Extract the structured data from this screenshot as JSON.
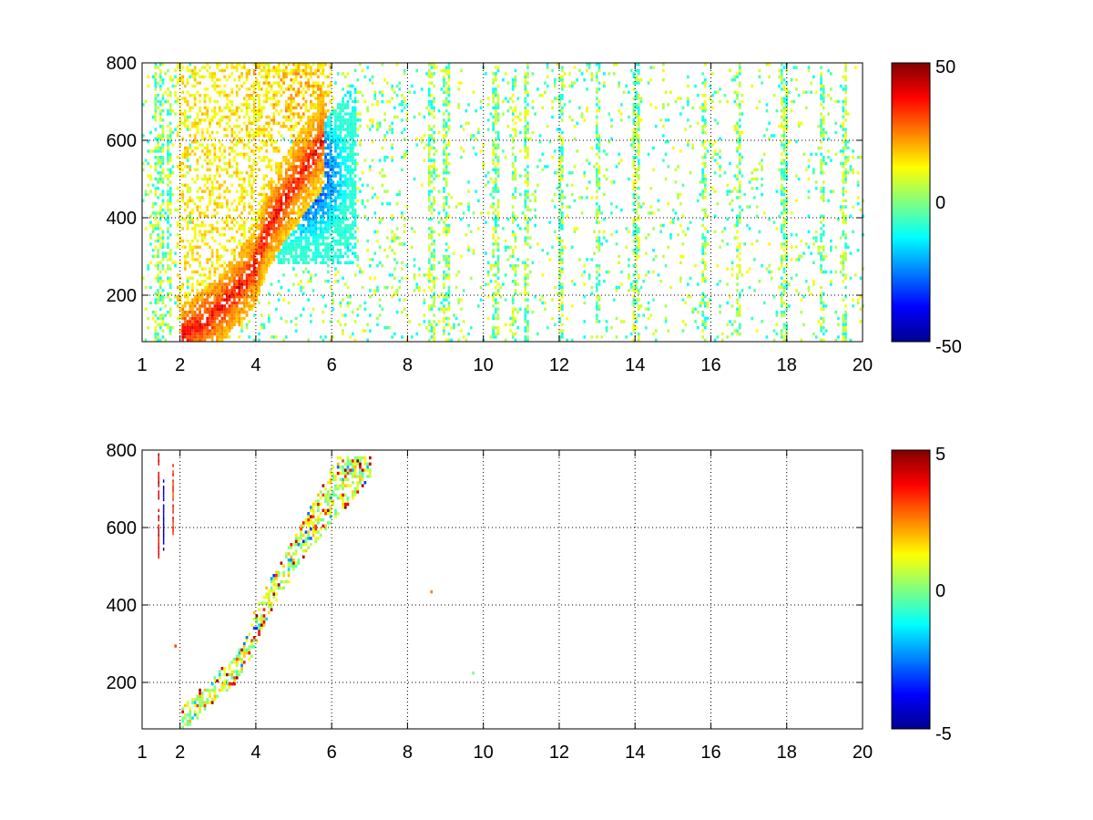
{
  "figure": {
    "background": "#ffffff"
  },
  "chart_data": [
    {
      "type": "heatmap",
      "title": "",
      "xlabel": "",
      "ylabel": "",
      "xlim": [
        1,
        20
      ],
      "ylim": [
        80,
        800
      ],
      "x_ticks": [
        1,
        2,
        4,
        6,
        8,
        10,
        12,
        14,
        16,
        18,
        20
      ],
      "x_tick_labels": [
        "1",
        "2",
        "4",
        "6",
        "8",
        "10",
        "12",
        "14",
        "16",
        "18",
        "20"
      ],
      "y_ticks": [
        200,
        400,
        600,
        800
      ],
      "y_tick_labels": [
        "200",
        "400",
        "600",
        "800"
      ],
      "grid": true,
      "grid_x": [
        2,
        4,
        6,
        8,
        10,
        12,
        14,
        16,
        18
      ],
      "grid_y": [
        200,
        400,
        600
      ],
      "colormap": "jet",
      "clim": [
        -50,
        50
      ],
      "colorbar_tick_labels": [
        "50",
        "0",
        "-50"
      ],
      "structure": "Dense positive (red/orange) ridge running from about x=2, y=90 up to x=4.5-5.5, y=400-520, with a negative (blue/cyan) lobe to its right spanning x=4-7, y=280-780; weak near-zero (green/yellow) scattered cells across the rest of the domain to x=20, denser in vertical stripes near x=8.6, 11, 12, 14, 15.8, 18; white where no data.",
      "ridge": [
        [
          2,
          90
        ],
        [
          2.8,
          140
        ],
        [
          3.4,
          200
        ],
        [
          3.9,
          260
        ],
        [
          4.3,
          370
        ],
        [
          4.7,
          440
        ],
        [
          5.1,
          500
        ],
        [
          5.5,
          560
        ]
      ],
      "positive_lobe": {
        "x_range": [
          2,
          5.5
        ],
        "y_range": [
          80,
          800
        ],
        "peak_value": 45
      },
      "negative_lobe": {
        "x_range": [
          4.2,
          7.1
        ],
        "y_range": [
          280,
          780
        ],
        "peak_value": -45
      },
      "stripes_x": [
        1.4,
        1.5,
        1.7,
        2.2,
        8.6,
        9.0,
        10.3,
        10.8,
        11.1,
        12.0,
        13.0,
        14.0,
        15.8,
        16.7,
        17.9,
        18.9,
        19.5
      ]
    },
    {
      "type": "heatmap",
      "title": "",
      "xlabel": "",
      "ylabel": "",
      "xlim": [
        1,
        20
      ],
      "ylim": [
        80,
        800
      ],
      "x_ticks": [
        1,
        2,
        4,
        6,
        8,
        10,
        12,
        14,
        16,
        18,
        20
      ],
      "x_tick_labels": [
        "1",
        "2",
        "4",
        "6",
        "8",
        "10",
        "12",
        "14",
        "16",
        "18",
        "20"
      ],
      "y_ticks": [
        200,
        400,
        600,
        800
      ],
      "y_tick_labels": [
        "200",
        "400",
        "600",
        "800"
      ],
      "grid": true,
      "grid_x": [
        2,
        4,
        6,
        8,
        10,
        12,
        14,
        16,
        18
      ],
      "grid_y": [
        200,
        400,
        600
      ],
      "colormap": "jet",
      "clim": [
        -5,
        5
      ],
      "colorbar_tick_labels": [
        "5",
        "0",
        "-5"
      ],
      "structure": "Sparse speckled cloud of mostly near-zero to positive (green/yellow/orange/red) cells following the same ridge from x=2, y=90 to x=6.8, y=780; a few isolated dark-red/blue vertical streaks near x=1.4-1.8, y=520-790; all else white.",
      "ridge": [
        [
          2,
          90
        ],
        [
          2.8,
          170
        ],
        [
          3.4,
          220
        ],
        [
          3.9,
          300
        ],
        [
          4.3,
          400
        ],
        [
          4.8,
          480
        ],
        [
          5.3,
          560
        ],
        [
          6.0,
          640
        ]
      ],
      "cloud": {
        "x_range": [
          2,
          7
        ],
        "y_range": [
          80,
          780
        ],
        "typical_value": 1
      },
      "streaks": [
        {
          "x": 1.42,
          "y_range": [
            520,
            790
          ],
          "value": 5
        },
        {
          "x": 1.55,
          "y_range": [
            540,
            720
          ],
          "value": -5
        },
        {
          "x": 1.8,
          "y_range": [
            580,
            760
          ],
          "value": 4
        }
      ]
    }
  ]
}
